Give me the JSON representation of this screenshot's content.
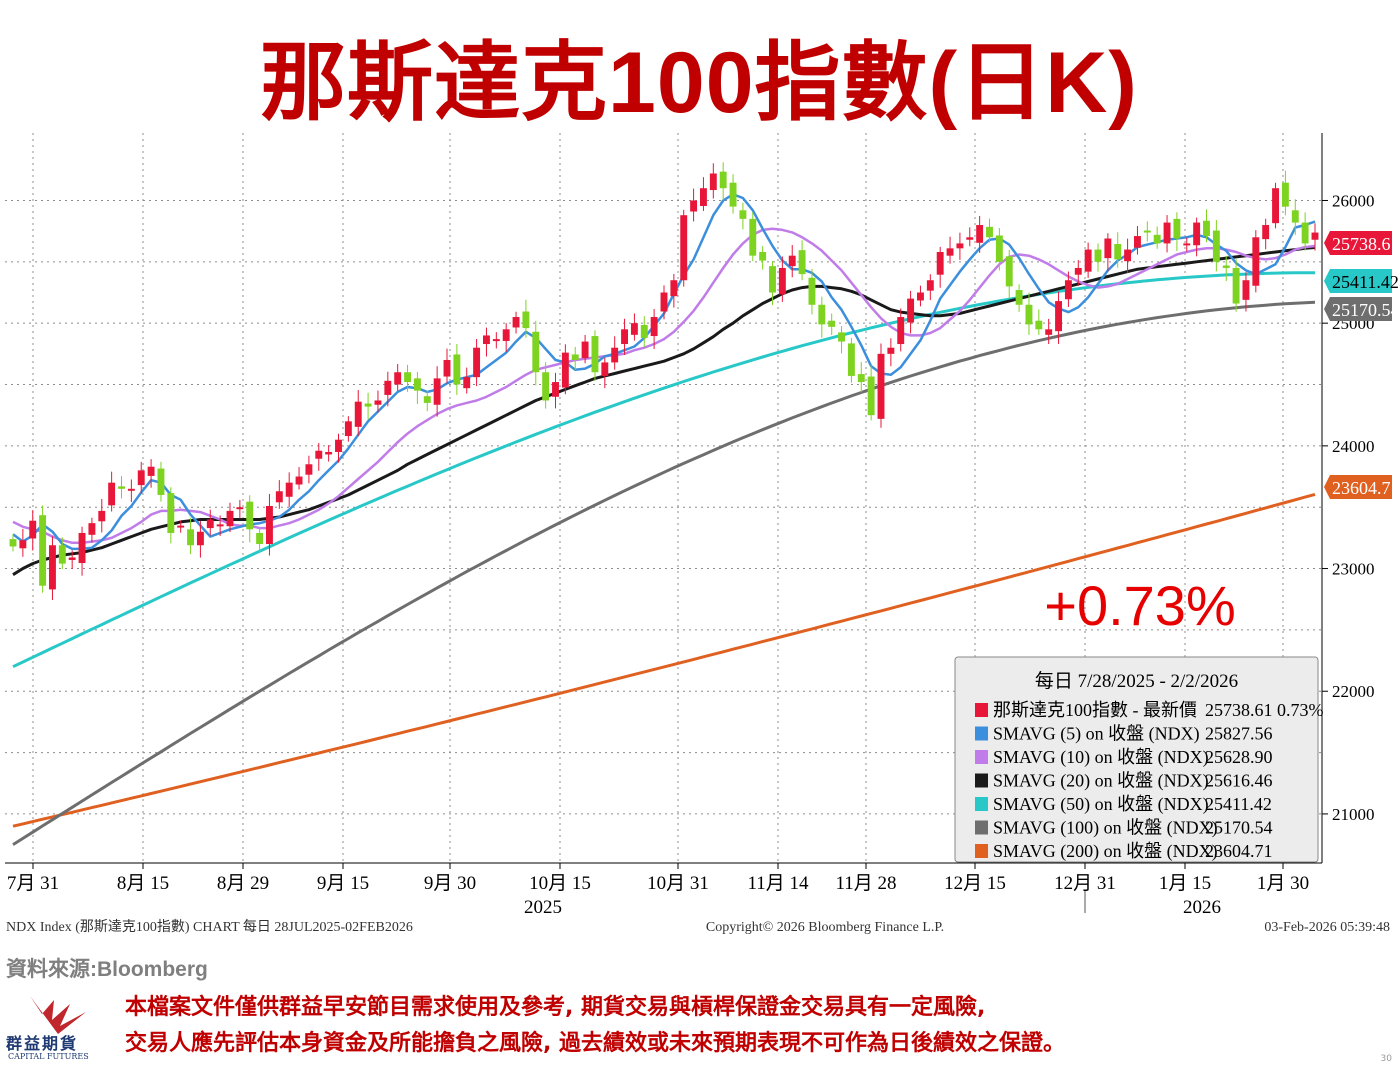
{
  "title": "那斯達克100指數(日K)",
  "change_label": "+0.73%",
  "source": "資料來源:Bloomberg",
  "disclaimer": [
    "本檔案文件僅供群益早安節目需求使用及參考, 期貨交易與槓桿保證金交易具有一定風險,",
    "交易人應先評估本身資金及所能擔負之風險, 過去績效或未來預期表現不可作為日後績效之保證。"
  ],
  "logo": {
    "name_cn": "群益期貨",
    "name_en": "CAPITAL FUTURES"
  },
  "page_number": "30",
  "footer": {
    "left": "NDX Index (那斯達克100指數) CHART 每日 28JUL2025-02FEB2026",
    "center": "Copyright© 2026 Bloomberg Finance L.P.",
    "right": "03-Feb-2026 05:39:48"
  },
  "chart_data": {
    "type": "candlestick",
    "y_ticks": [
      "26000",
      "25000",
      "24000",
      "23000",
      "22000",
      "21000"
    ],
    "ylim": [
      20600,
      26550
    ],
    "x_ticks": [
      "7月 31",
      "8月 15",
      "8月 29",
      "9月 15",
      "9月 30",
      "10月 15",
      "10月 31",
      "11月 14",
      "11月 28",
      "12月 15",
      "12月 31",
      "1月 15",
      "1月 30"
    ],
    "x_years": [
      "2025",
      "2026"
    ],
    "legend": {
      "header": "每日 7/28/2025 - 2/2/2026",
      "items": [
        {
          "label": "那斯達克100指數 - 最新價",
          "value": "25738.61 0.73%",
          "color": "#e8173a"
        },
        {
          "label": "SMAVG (5) on 收盤 (NDX)",
          "value": "25827.56",
          "color": "#3b8fdc"
        },
        {
          "label": "SMAVG (10) on 收盤 (NDX)",
          "value": "25628.90",
          "color": "#c07ce8"
        },
        {
          "label": "SMAVG (20) on 收盤 (NDX)",
          "value": "25616.46",
          "color": "#1a1a1a"
        },
        {
          "label": "SMAVG (50) on 收盤 (NDX)",
          "value": "25411.42",
          "color": "#28c8c8"
        },
        {
          "label": "SMAVG (100) on 收盤 (NDX)",
          "value": "25170.54",
          "color": "#6e6e6e"
        },
        {
          "label": "SMAVG (200) on 收盤 (NDX)",
          "value": "23604.71",
          "color": "#e06020"
        }
      ]
    },
    "price_tags": [
      {
        "value": 25738.61,
        "text": "25738.61",
        "color": "#e8173a"
      },
      {
        "value": 25411.42,
        "text": "25411.42",
        "color": "#28c8c8"
      },
      {
        "value": 25170.54,
        "text": "25170.54",
        "color": "#6e6e6e"
      },
      {
        "value": 23604.71,
        "text": "23604.71",
        "color": "#e06020"
      }
    ],
    "closes": [
      23180,
      23230,
      23390,
      22860,
      23190,
      23040,
      23090,
      23290,
      23370,
      23470,
      23700,
      23650,
      23650,
      23800,
      23830,
      23600,
      23290,
      23350,
      23190,
      23300,
      23400,
      23360,
      23470,
      23500,
      23320,
      23200,
      23510,
      23630,
      23700,
      23750,
      23850,
      23960,
      23950,
      24050,
      24200,
      24360,
      24320,
      24370,
      24530,
      24600,
      24520,
      24450,
      24350,
      24550,
      24700,
      24500,
      24560,
      24800,
      24900,
      24870,
      24950,
      25050,
      24960,
      24600,
      24370,
      24520,
      24760,
      24700,
      24850,
      24600,
      24680,
      24800,
      24950,
      25000,
      24880,
      25050,
      25250,
      25350,
      25880,
      26000,
      26100,
      26220,
      26100,
      25950,
      25850,
      25550,
      25510,
      25250,
      25450,
      25550,
      25400,
      25150,
      24990,
      24970,
      24850,
      24570,
      24520,
      24250,
      24750,
      24800,
      25050,
      25200,
      25250,
      25350,
      25580,
      25610,
      25650,
      25700,
      25800,
      25700,
      25500,
      25300,
      25150,
      24990,
      24950,
      24950,
      25180,
      25350,
      25450,
      25600,
      25500,
      25690,
      25520,
      25600,
      25710,
      25750,
      25650,
      25820,
      25690,
      25650,
      25820,
      25710,
      25500,
      25450,
      25160,
      25350,
      25700,
      25800,
      26100,
      25950,
      25820,
      25650,
      25738.61
    ],
    "sma5": [
      23280,
      23220,
      23270,
      23360,
      23300,
      23200,
      23160,
      23160,
      23170,
      23230,
      23310,
      23430,
      23510,
      23620,
      23720,
      23700,
      23600,
      23560,
      23440,
      23350,
      23260,
      23290,
      23320,
      23340,
      23360,
      23370,
      23390,
      23420,
      23480,
      23560,
      23630,
      23720,
      23800,
      23880,
      23980,
      24090,
      24200,
      24280,
      24360,
      24440,
      24480,
      24470,
      24440,
      24460,
      24510,
      24540,
      24560,
      24580,
      24640,
      24700,
      24760,
      24850,
      24930,
      24880,
      24790,
      24700,
      24680,
      24620,
      24630,
      24670,
      24730,
      24750,
      24780,
      24810,
      24880,
      24980,
      25080,
      25240,
      25390,
      25520,
      25700,
      25880,
      26000,
      26050,
      26020,
      25920,
      25770,
      25630,
      25510,
      25440,
      25440,
      25410,
      25340,
      25210,
      25110,
      24970,
      24820,
      24650,
      24590,
      24580,
      24640,
      24750,
      24860,
      25020,
      25200,
      25310,
      25420,
      25520,
      25610,
      25680,
      25690,
      25640,
      25530,
      25400,
      25280,
      25170,
      25120,
      25090,
      25130,
      25210,
      25320,
      25430,
      25510,
      25560,
      25620,
      25640,
      25660,
      25680,
      25690,
      25700,
      25720,
      25700,
      25640,
      25590,
      25490,
      25430,
      25400,
      25440,
      25480,
      25620,
      25780,
      25800,
      25827.56
    ],
    "sma10": [
      23380,
      23340,
      23320,
      23300,
      23260,
      23230,
      23210,
      23210,
      23220,
      23230,
      23250,
      23290,
      23330,
      23380,
      23440,
      23470,
      23470,
      23480,
      23470,
      23460,
      23430,
      23400,
      23360,
      23350,
      23350,
      23330,
      23330,
      23350,
      23370,
      23400,
      23440,
      23480,
      23530,
      23590,
      23660,
      23730,
      23800,
      23870,
      23950,
      24030,
      24100,
      24160,
      24210,
      24260,
      24300,
      24330,
      24350,
      24370,
      24400,
      24440,
      24480,
      24530,
      24580,
      24620,
      24640,
      24660,
      24680,
      24700,
      24710,
      24720,
      24730,
      24740,
      24750,
      24780,
      24800,
      24830,
      24870,
      24930,
      25010,
      25100,
      25210,
      25330,
      25450,
      25560,
      25650,
      25720,
      25760,
      25770,
      25760,
      25740,
      25700,
      25650,
      25590,
      25510,
      25430,
      25330,
      25230,
      25130,
      25040,
      24970,
      24920,
      24900,
      24900,
      24920,
      24960,
      25030,
      25100,
      25190,
      25290,
      25390,
      25480,
      25540,
      25560,
      25550,
      25520,
      25480,
      25430,
      25380,
      25340,
      25310,
      25290,
      25300,
      25320,
      25360,
      25400,
      25440,
      25480,
      25520,
      25560,
      25580,
      25600,
      25610,
      25610,
      25600,
      25580,
      25550,
      25530,
      25520,
      25530,
      25560,
      25600,
      25620,
      25628.9
    ],
    "sma20": [
      22950,
      23000,
      23040,
      23070,
      23090,
      23110,
      23120,
      23130,
      23150,
      23170,
      23200,
      23230,
      23260,
      23290,
      23320,
      23340,
      23360,
      23380,
      23390,
      23400,
      23400,
      23400,
      23400,
      23400,
      23400,
      23400,
      23410,
      23420,
      23440,
      23460,
      23480,
      23510,
      23540,
      23570,
      23600,
      23640,
      23680,
      23720,
      23760,
      23800,
      23850,
      23890,
      23930,
      23970,
      24010,
      24050,
      24090,
      24130,
      24170,
      24210,
      24250,
      24290,
      24330,
      24370,
      24400,
      24430,
      24460,
      24490,
      24520,
      24550,
      24570,
      24590,
      24610,
      24630,
      24650,
      24670,
      24690,
      24720,
      24750,
      24790,
      24840,
      24890,
      24950,
      25000,
      25060,
      25110,
      25160,
      25200,
      25240,
      25270,
      25290,
      25300,
      25300,
      25290,
      25280,
      25260,
      25230,
      25190,
      25150,
      25110,
      25090,
      25080,
      25070,
      25060,
      25060,
      25070,
      25080,
      25100,
      25120,
      25140,
      25160,
      25180,
      25200,
      25220,
      25240,
      25260,
      25280,
      25300,
      25320,
      25340,
      25360,
      25380,
      25400,
      25420,
      25440,
      25450,
      25460,
      25470,
      25480,
      25490,
      25500,
      25510,
      25520,
      25530,
      25540,
      25550,
      25560,
      25570,
      25580,
      25590,
      25600,
      25610,
      25616.46
    ]
  }
}
